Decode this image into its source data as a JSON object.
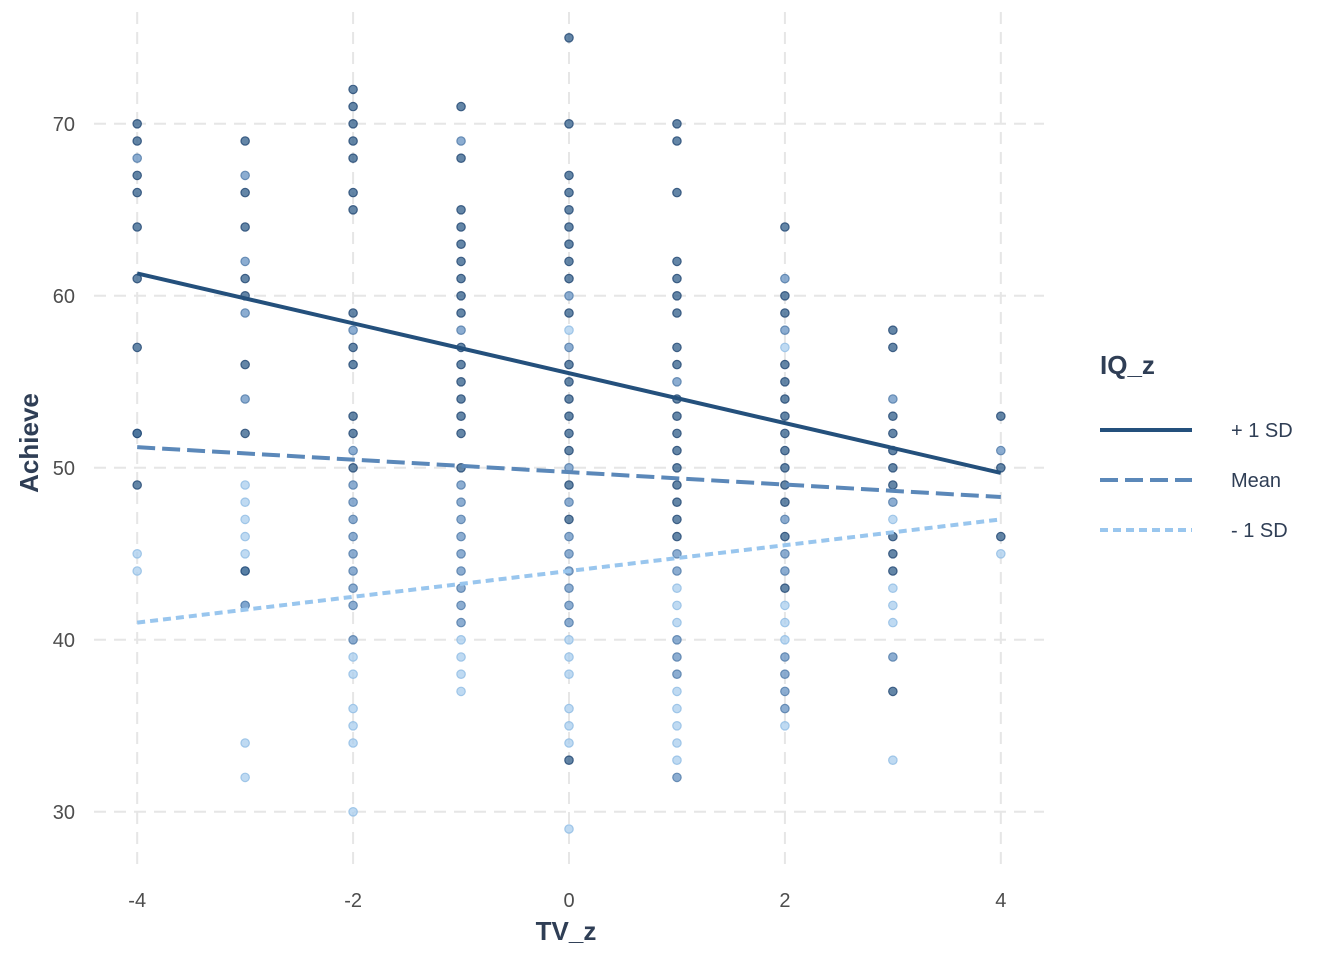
{
  "chart_data": {
    "type": "scatter",
    "xlabel": "TV_z",
    "ylabel": "Achieve",
    "xlim": [
      -4.4,
      4.4
    ],
    "ylim": [
      26.5,
      76.5
    ],
    "x_ticks": [
      -4,
      -2,
      0,
      2,
      4
    ],
    "y_ticks": [
      30,
      40,
      50,
      60,
      70
    ],
    "x_tick_labels": [
      "-4",
      "-2",
      "0",
      "2",
      "4"
    ],
    "y_tick_labels": [
      "30",
      "40",
      "50",
      "60",
      "70"
    ],
    "grid": true,
    "legend": {
      "title": "IQ_z",
      "placement": "right",
      "entries": [
        "+ 1 SD",
        "Mean",
        "- 1 SD"
      ]
    },
    "colors": {
      "dark": "#24507c",
      "mid": "#5b88b9",
      "light": "#99c6ee",
      "point_dark": "#3d6891",
      "point_mid": "#6f98c6",
      "point_light": "#a9cdee"
    },
    "series": [
      {
        "name": "+ 1 SD",
        "style": "solid",
        "color": "#24507c",
        "x": [
          -4,
          4
        ],
        "y": [
          61.3,
          49.7
        ]
      },
      {
        "name": "Mean",
        "style": "dashed",
        "color": "#5b88b9",
        "x": [
          -4,
          4
        ],
        "y": [
          51.2,
          48.3
        ]
      },
      {
        "name": "- 1 SD",
        "style": "dotted",
        "color": "#99c6ee",
        "x": [
          -4,
          4
        ],
        "y": [
          41.0,
          47.0
        ]
      }
    ],
    "points": [
      {
        "x": -4,
        "dark": [
          70,
          69,
          67,
          66,
          64,
          61,
          57,
          52,
          49
        ],
        "mid": [
          68,
          52
        ],
        "light": [
          45,
          44
        ]
      },
      {
        "x": -3,
        "dark": [
          69,
          66,
          64,
          61,
          60,
          56,
          52,
          44
        ],
        "mid": [
          67,
          62,
          59,
          54,
          42
        ],
        "light": [
          49,
          48,
          47,
          46,
          45,
          44,
          42,
          34,
          32
        ]
      },
      {
        "x": -2,
        "dark": [
          72,
          71,
          70,
          69,
          68,
          66,
          65,
          59,
          57,
          56,
          53,
          52,
          50
        ],
        "mid": [
          58,
          51,
          49,
          48,
          47,
          46,
          45,
          44,
          43,
          42,
          40
        ],
        "light": [
          39,
          38,
          36,
          35,
          34,
          30
        ]
      },
      {
        "x": -1,
        "dark": [
          71,
          68,
          65,
          64,
          63,
          62,
          61,
          60,
          59,
          57,
          56,
          55,
          54,
          53,
          52,
          50
        ],
        "mid": [
          69,
          58,
          49,
          48,
          47,
          46,
          45,
          44,
          43,
          42,
          41
        ],
        "light": [
          40,
          39,
          38,
          37
        ]
      },
      {
        "x": 0,
        "dark": [
          75,
          70,
          67,
          66,
          65,
          64,
          63,
          62,
          61,
          59,
          56,
          55,
          54,
          53,
          52,
          51,
          49,
          47,
          33
        ],
        "mid": [
          60,
          57,
          50,
          48,
          46,
          45,
          44,
          43,
          42,
          41
        ],
        "light": [
          58,
          40,
          39,
          38,
          36,
          35,
          34,
          29
        ]
      },
      {
        "x": 1,
        "dark": [
          70,
          69,
          66,
          62,
          61,
          60,
          59,
          57,
          56,
          54,
          53,
          52,
          51,
          50,
          49,
          48,
          47,
          46
        ],
        "mid": [
          55,
          45,
          44,
          40,
          39,
          38,
          32
        ],
        "light": [
          43,
          42,
          41,
          37,
          36,
          35,
          34,
          33
        ]
      },
      {
        "x": 2,
        "dark": [
          64,
          60,
          59,
          56,
          55,
          54,
          53,
          52,
          51,
          50,
          49,
          48,
          46,
          43
        ],
        "mid": [
          61,
          58,
          47,
          45,
          44,
          39,
          38,
          37,
          36
        ],
        "light": [
          57,
          42,
          41,
          40,
          35
        ]
      },
      {
        "x": 3,
        "dark": [
          58,
          57,
          53,
          52,
          51,
          50,
          49,
          46,
          45,
          44,
          37
        ],
        "mid": [
          54,
          48,
          39
        ],
        "light": [
          47,
          43,
          42,
          41,
          33
        ]
      },
      {
        "x": 4,
        "dark": [
          53,
          50,
          46
        ],
        "mid": [
          51
        ],
        "light": [
          45
        ]
      }
    ]
  }
}
